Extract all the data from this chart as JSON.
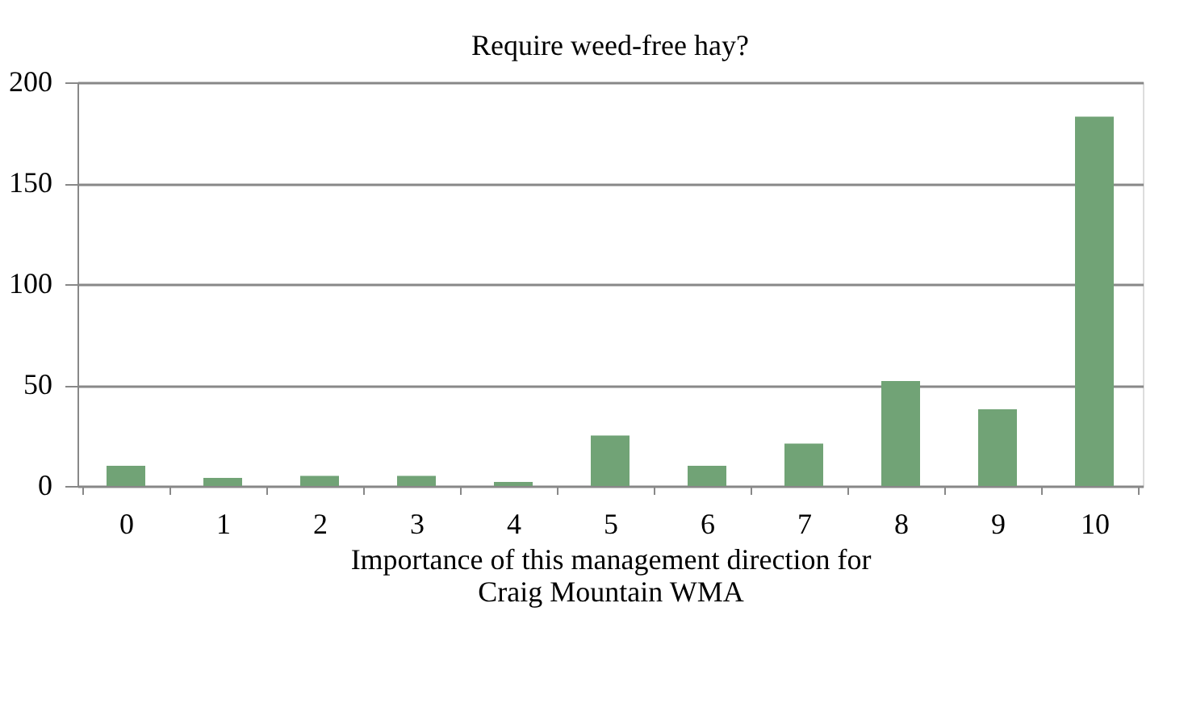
{
  "chart_data": {
    "type": "bar",
    "title": "Require weed-free hay?",
    "xlabel": [
      "Importance of this management direction for",
      "Craig Mountain WMA"
    ],
    "categories": [
      "0",
      "1",
      "2",
      "3",
      "4",
      "5",
      "6",
      "7",
      "8",
      "9",
      "10"
    ],
    "values": [
      10,
      4,
      5,
      5,
      2,
      25,
      10,
      21,
      52,
      38,
      183
    ],
    "color": "#71a376",
    "ylim": [
      0,
      200
    ],
    "yticks": [
      0,
      50,
      100,
      150,
      200
    ],
    "grid": "y"
  }
}
